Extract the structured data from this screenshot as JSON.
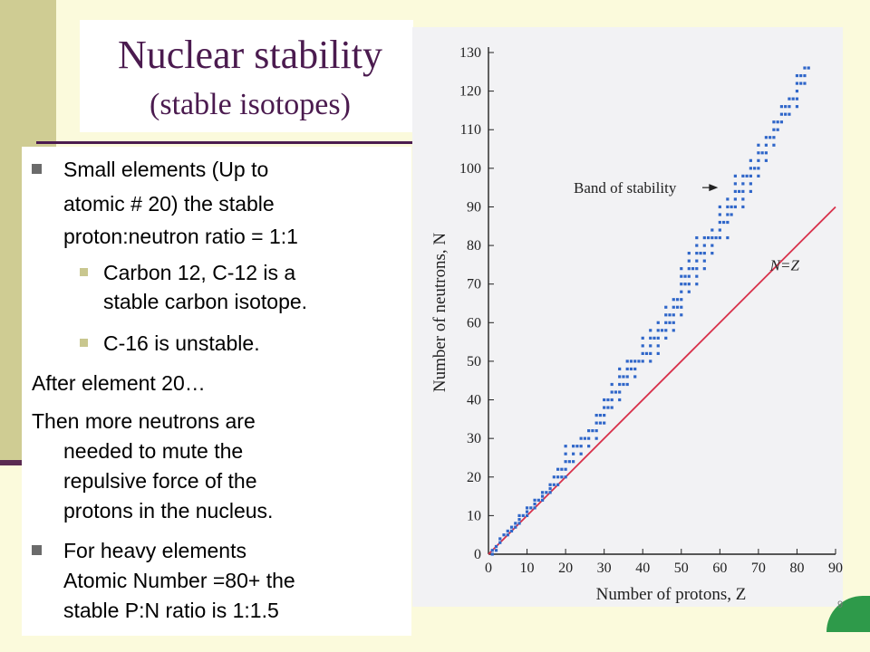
{
  "slide": {
    "title": "Nuclear stability",
    "subtitle": "(stable isotopes)",
    "page_number": "9",
    "bullets": {
      "b1_l1": "Small elements (Up to",
      "b1_l2": "atomic # 20)   the stable",
      "b1_l3": "proton:neutron ratio = 1:1",
      "s1_l1": "Carbon 12,  C-12 is a",
      "s1_l2": "stable carbon isotope.",
      "s2_l1": "C-16 is unstable.",
      "p1": "After element 20…",
      "p2_l1": "Then more neutrons are",
      "p2_l2": "needed to mute the",
      "p2_l3": "repulsive force of the",
      "p2_l4": "protons in the nucleus.",
      "b2_l1": "For heavy elements",
      "b2_l2": "Atomic Number =80+ the",
      "b2_l3": "stable P:N ratio is 1:1.5"
    }
  },
  "chart_data": {
    "type": "scatter",
    "xlabel": "Number of protons, Z",
    "ylabel": "Number of neutrons, N",
    "xlim": [
      0,
      90
    ],
    "ylim": [
      0,
      130
    ],
    "x_ticks": [
      0,
      10,
      20,
      30,
      40,
      50,
      60,
      70,
      80,
      90
    ],
    "x_tick_labels": [
      "0",
      "10",
      "20",
      "30",
      "40",
      "50",
      "60",
      "70",
      "80",
      "90"
    ],
    "y_ticks": [
      0,
      10,
      20,
      30,
      40,
      50,
      60,
      70,
      80,
      90,
      100,
      110,
      120,
      130
    ],
    "y_tick_labels": [
      "0",
      "10",
      "20",
      "30",
      "40",
      "50",
      "60",
      "70",
      "80",
      "90",
      "100",
      "110",
      "120",
      "130"
    ],
    "series": [
      {
        "name": "",
        "style": "points",
        "color": "#2f66c9",
        "points": [
          [
            1,
            0
          ],
          [
            1,
            1
          ],
          [
            2,
            1
          ],
          [
            2,
            2
          ],
          [
            3,
            3
          ],
          [
            3,
            4
          ],
          [
            4,
            5
          ],
          [
            5,
            5
          ],
          [
            5,
            6
          ],
          [
            6,
            6
          ],
          [
            6,
            7
          ],
          [
            7,
            7
          ],
          [
            7,
            8
          ],
          [
            8,
            8
          ],
          [
            8,
            9
          ],
          [
            8,
            10
          ],
          [
            9,
            10
          ],
          [
            10,
            10
          ],
          [
            10,
            11
          ],
          [
            10,
            12
          ],
          [
            11,
            12
          ],
          [
            12,
            12
          ],
          [
            12,
            13
          ],
          [
            12,
            14
          ],
          [
            13,
            14
          ],
          [
            14,
            14
          ],
          [
            14,
            15
          ],
          [
            14,
            16
          ],
          [
            15,
            16
          ],
          [
            16,
            16
          ],
          [
            16,
            17
          ],
          [
            16,
            18
          ],
          [
            17,
            18
          ],
          [
            17,
            20
          ],
          [
            18,
            18
          ],
          [
            18,
            20
          ],
          [
            18,
            22
          ],
          [
            19,
            20
          ],
          [
            19,
            22
          ],
          [
            20,
            20
          ],
          [
            20,
            22
          ],
          [
            20,
            24
          ],
          [
            20,
            26
          ],
          [
            20,
            28
          ],
          [
            21,
            24
          ],
          [
            22,
            24
          ],
          [
            22,
            26
          ],
          [
            22,
            28
          ],
          [
            23,
            28
          ],
          [
            24,
            26
          ],
          [
            24,
            28
          ],
          [
            24,
            30
          ],
          [
            25,
            30
          ],
          [
            26,
            28
          ],
          [
            26,
            30
          ],
          [
            26,
            32
          ],
          [
            27,
            32
          ],
          [
            28,
            30
          ],
          [
            28,
            32
          ],
          [
            28,
            34
          ],
          [
            28,
            36
          ],
          [
            29,
            34
          ],
          [
            29,
            36
          ],
          [
            30,
            34
          ],
          [
            30,
            36
          ],
          [
            30,
            38
          ],
          [
            30,
            40
          ],
          [
            31,
            38
          ],
          [
            31,
            40
          ],
          [
            32,
            38
          ],
          [
            32,
            40
          ],
          [
            32,
            42
          ],
          [
            32,
            44
          ],
          [
            33,
            42
          ],
          [
            34,
            40
          ],
          [
            34,
            42
          ],
          [
            34,
            44
          ],
          [
            34,
            46
          ],
          [
            34,
            48
          ],
          [
            35,
            44
          ],
          [
            35,
            46
          ],
          [
            36,
            44
          ],
          [
            36,
            46
          ],
          [
            36,
            48
          ],
          [
            36,
            50
          ],
          [
            37,
            48
          ],
          [
            37,
            50
          ],
          [
            38,
            46
          ],
          [
            38,
            48
          ],
          [
            38,
            50
          ],
          [
            39,
            50
          ],
          [
            40,
            50
          ],
          [
            40,
            52
          ],
          [
            40,
            54
          ],
          [
            40,
            56
          ],
          [
            41,
            52
          ],
          [
            42,
            50
          ],
          [
            42,
            52
          ],
          [
            42,
            54
          ],
          [
            42,
            56
          ],
          [
            42,
            58
          ],
          [
            43,
            56
          ],
          [
            44,
            52
          ],
          [
            44,
            54
          ],
          [
            44,
            56
          ],
          [
            44,
            58
          ],
          [
            44,
            60
          ],
          [
            45,
            58
          ],
          [
            46,
            56
          ],
          [
            46,
            58
          ],
          [
            46,
            60
          ],
          [
            46,
            62
          ],
          [
            46,
            64
          ],
          [
            47,
            60
          ],
          [
            47,
            62
          ],
          [
            48,
            58
          ],
          [
            48,
            60
          ],
          [
            48,
            62
          ],
          [
            48,
            64
          ],
          [
            48,
            66
          ],
          [
            49,
            64
          ],
          [
            49,
            66
          ],
          [
            50,
            62
          ],
          [
            50,
            64
          ],
          [
            50,
            66
          ],
          [
            50,
            68
          ],
          [
            50,
            70
          ],
          [
            50,
            72
          ],
          [
            50,
            74
          ],
          [
            51,
            70
          ],
          [
            51,
            72
          ],
          [
            52,
            68
          ],
          [
            52,
            70
          ],
          [
            52,
            72
          ],
          [
            52,
            74
          ],
          [
            52,
            76
          ],
          [
            52,
            78
          ],
          [
            53,
            74
          ],
          [
            54,
            70
          ],
          [
            54,
            72
          ],
          [
            54,
            74
          ],
          [
            54,
            76
          ],
          [
            54,
            78
          ],
          [
            54,
            80
          ],
          [
            54,
            82
          ],
          [
            55,
            78
          ],
          [
            56,
            74
          ],
          [
            56,
            76
          ],
          [
            56,
            78
          ],
          [
            56,
            80
          ],
          [
            56,
            82
          ],
          [
            57,
            82
          ],
          [
            58,
            78
          ],
          [
            58,
            80
          ],
          [
            58,
            82
          ],
          [
            58,
            84
          ],
          [
            59,
            82
          ],
          [
            60,
            82
          ],
          [
            60,
            84
          ],
          [
            60,
            86
          ],
          [
            60,
            88
          ],
          [
            60,
            90
          ],
          [
            61,
            86
          ],
          [
            62,
            82
          ],
          [
            62,
            86
          ],
          [
            62,
            88
          ],
          [
            62,
            90
          ],
          [
            62,
            92
          ],
          [
            63,
            88
          ],
          [
            63,
            90
          ],
          [
            64,
            90
          ],
          [
            64,
            92
          ],
          [
            64,
            94
          ],
          [
            64,
            96
          ],
          [
            64,
            98
          ],
          [
            65,
            94
          ],
          [
            66,
            90
          ],
          [
            66,
            92
          ],
          [
            66,
            94
          ],
          [
            66,
            96
          ],
          [
            66,
            98
          ],
          [
            67,
            98
          ],
          [
            68,
            94
          ],
          [
            68,
            96
          ],
          [
            68,
            98
          ],
          [
            68,
            100
          ],
          [
            68,
            102
          ],
          [
            69,
            100
          ],
          [
            70,
            98
          ],
          [
            70,
            100
          ],
          [
            70,
            102
          ],
          [
            70,
            104
          ],
          [
            70,
            106
          ],
          [
            71,
            104
          ],
          [
            72,
            102
          ],
          [
            72,
            104
          ],
          [
            72,
            106
          ],
          [
            72,
            108
          ],
          [
            73,
            108
          ],
          [
            74,
            106
          ],
          [
            74,
            108
          ],
          [
            74,
            110
          ],
          [
            74,
            112
          ],
          [
            75,
            110
          ],
          [
            75,
            112
          ],
          [
            76,
            112
          ],
          [
            76,
            114
          ],
          [
            76,
            116
          ],
          [
            77,
            114
          ],
          [
            77,
            116
          ],
          [
            78,
            114
          ],
          [
            78,
            116
          ],
          [
            78,
            118
          ],
          [
            79,
            118
          ],
          [
            80,
            116
          ],
          [
            80,
            118
          ],
          [
            80,
            120
          ],
          [
            80,
            122
          ],
          [
            80,
            124
          ],
          [
            81,
            122
          ],
          [
            81,
            124
          ],
          [
            82,
            122
          ],
          [
            82,
            124
          ],
          [
            82,
            126
          ],
          [
            83,
            126
          ]
        ]
      },
      {
        "name": "",
        "style": "line",
        "color": "#d8304a",
        "points": [
          [
            0,
            0
          ],
          [
            90,
            90
          ]
        ]
      }
    ],
    "annotations": [
      {
        "text": "Band of stability",
        "arrow": true,
        "x": 60,
        "y": 95
      },
      {
        "text": "N=Z",
        "x": 73,
        "y": 75
      }
    ],
    "grid": false,
    "legend": "none"
  }
}
